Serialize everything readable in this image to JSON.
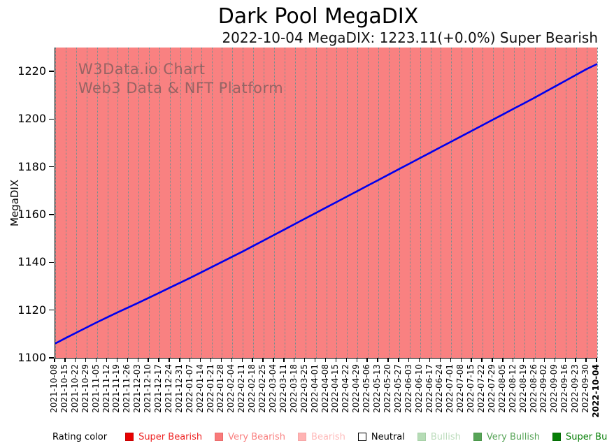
{
  "title": "Dark Pool MegaDIX",
  "subtitle": "2022-10-04 MegaDIX: 1223.11(+0.0%) Super Bearish",
  "watermark": {
    "line1": "W3Data.io Chart",
    "line2": "Web3 Data & NFT Platform"
  },
  "chart_data": {
    "type": "line",
    "title": "Dark Pool MegaDIX",
    "xlabel": "",
    "ylabel": "MegaDIX",
    "ylim": [
      1100,
      1230
    ],
    "yticks": [
      1100,
      1120,
      1140,
      1160,
      1180,
      1200,
      1220
    ],
    "grid": "vertical-dotted",
    "legend_position": "bottom",
    "line_color": "#0000ee",
    "plot_background": "#f98181",
    "grid_color": "#6e8f8f",
    "x": [
      "2021-10-08",
      "2021-10-15",
      "2021-10-22",
      "2021-10-29",
      "2021-11-05",
      "2021-11-12",
      "2021-11-19",
      "2021-11-26",
      "2021-12-03",
      "2021-12-10",
      "2021-12-17",
      "2021-12-24",
      "2021-12-31",
      "2022-01-07",
      "2022-01-14",
      "2022-01-21",
      "2022-01-28",
      "2022-02-04",
      "2022-02-11",
      "2022-02-18",
      "2022-02-25",
      "2022-03-04",
      "2022-03-11",
      "2022-03-18",
      "2022-03-25",
      "2022-04-01",
      "2022-04-08",
      "2022-04-15",
      "2022-04-22",
      "2022-04-29",
      "2022-05-06",
      "2022-05-13",
      "2022-05-20",
      "2022-05-27",
      "2022-06-03",
      "2022-06-10",
      "2022-06-17",
      "2022-06-24",
      "2022-07-01",
      "2022-07-08",
      "2022-07-15",
      "2022-07-22",
      "2022-07-29",
      "2022-08-05",
      "2022-08-12",
      "2022-08-19",
      "2022-08-26",
      "2022-09-02",
      "2022-09-09",
      "2022-09-16",
      "2022-09-23",
      "2022-09-30",
      "2022-10-04"
    ],
    "series": [
      {
        "name": "MegaDIX",
        "values": [
          1106.0,
          1108.3,
          1110.5,
          1112.7,
          1114.9,
          1117.0,
          1119.1,
          1121.1,
          1123.1,
          1125.2,
          1127.3,
          1129.4,
          1131.5,
          1133.6,
          1135.8,
          1138.0,
          1140.2,
          1142.4,
          1144.6,
          1146.9,
          1149.2,
          1151.5,
          1153.8,
          1156.1,
          1158.4,
          1160.7,
          1163.0,
          1165.3,
          1167.6,
          1169.9,
          1172.2,
          1174.5,
          1176.8,
          1179.1,
          1181.4,
          1183.7,
          1186.0,
          1188.3,
          1190.6,
          1192.9,
          1195.2,
          1197.5,
          1199.8,
          1202.1,
          1204.4,
          1206.7,
          1209.0,
          1211.4,
          1213.8,
          1216.2,
          1218.6,
          1221.0,
          1223.11
        ]
      }
    ]
  },
  "legend": {
    "label": "Rating color",
    "items": [
      {
        "label": "Super Bearish",
        "fill": "#e80000",
        "border": "#c40000",
        "text": "#ee2222"
      },
      {
        "label": "Very Bearish",
        "fill": "#f97a7a",
        "border": "#e86a6a",
        "text": "#f98080"
      },
      {
        "label": "Bearish",
        "fill": "#ffb3b3",
        "border": "#f5a5a5",
        "text": "#ffbaba"
      },
      {
        "label": "Neutral",
        "fill": "#ffffff",
        "border": "#000000",
        "text": "#000000"
      },
      {
        "label": "Bullish",
        "fill": "#b6dcb6",
        "border": "#a5cfa5",
        "text": "#bcdcbc"
      },
      {
        "label": "Very Bullish",
        "fill": "#57a457",
        "border": "#479447",
        "text": "#57a457"
      },
      {
        "label": "Super Bullish",
        "fill": "#067f06",
        "border": "#056a05",
        "text": "#067f06"
      }
    ]
  }
}
